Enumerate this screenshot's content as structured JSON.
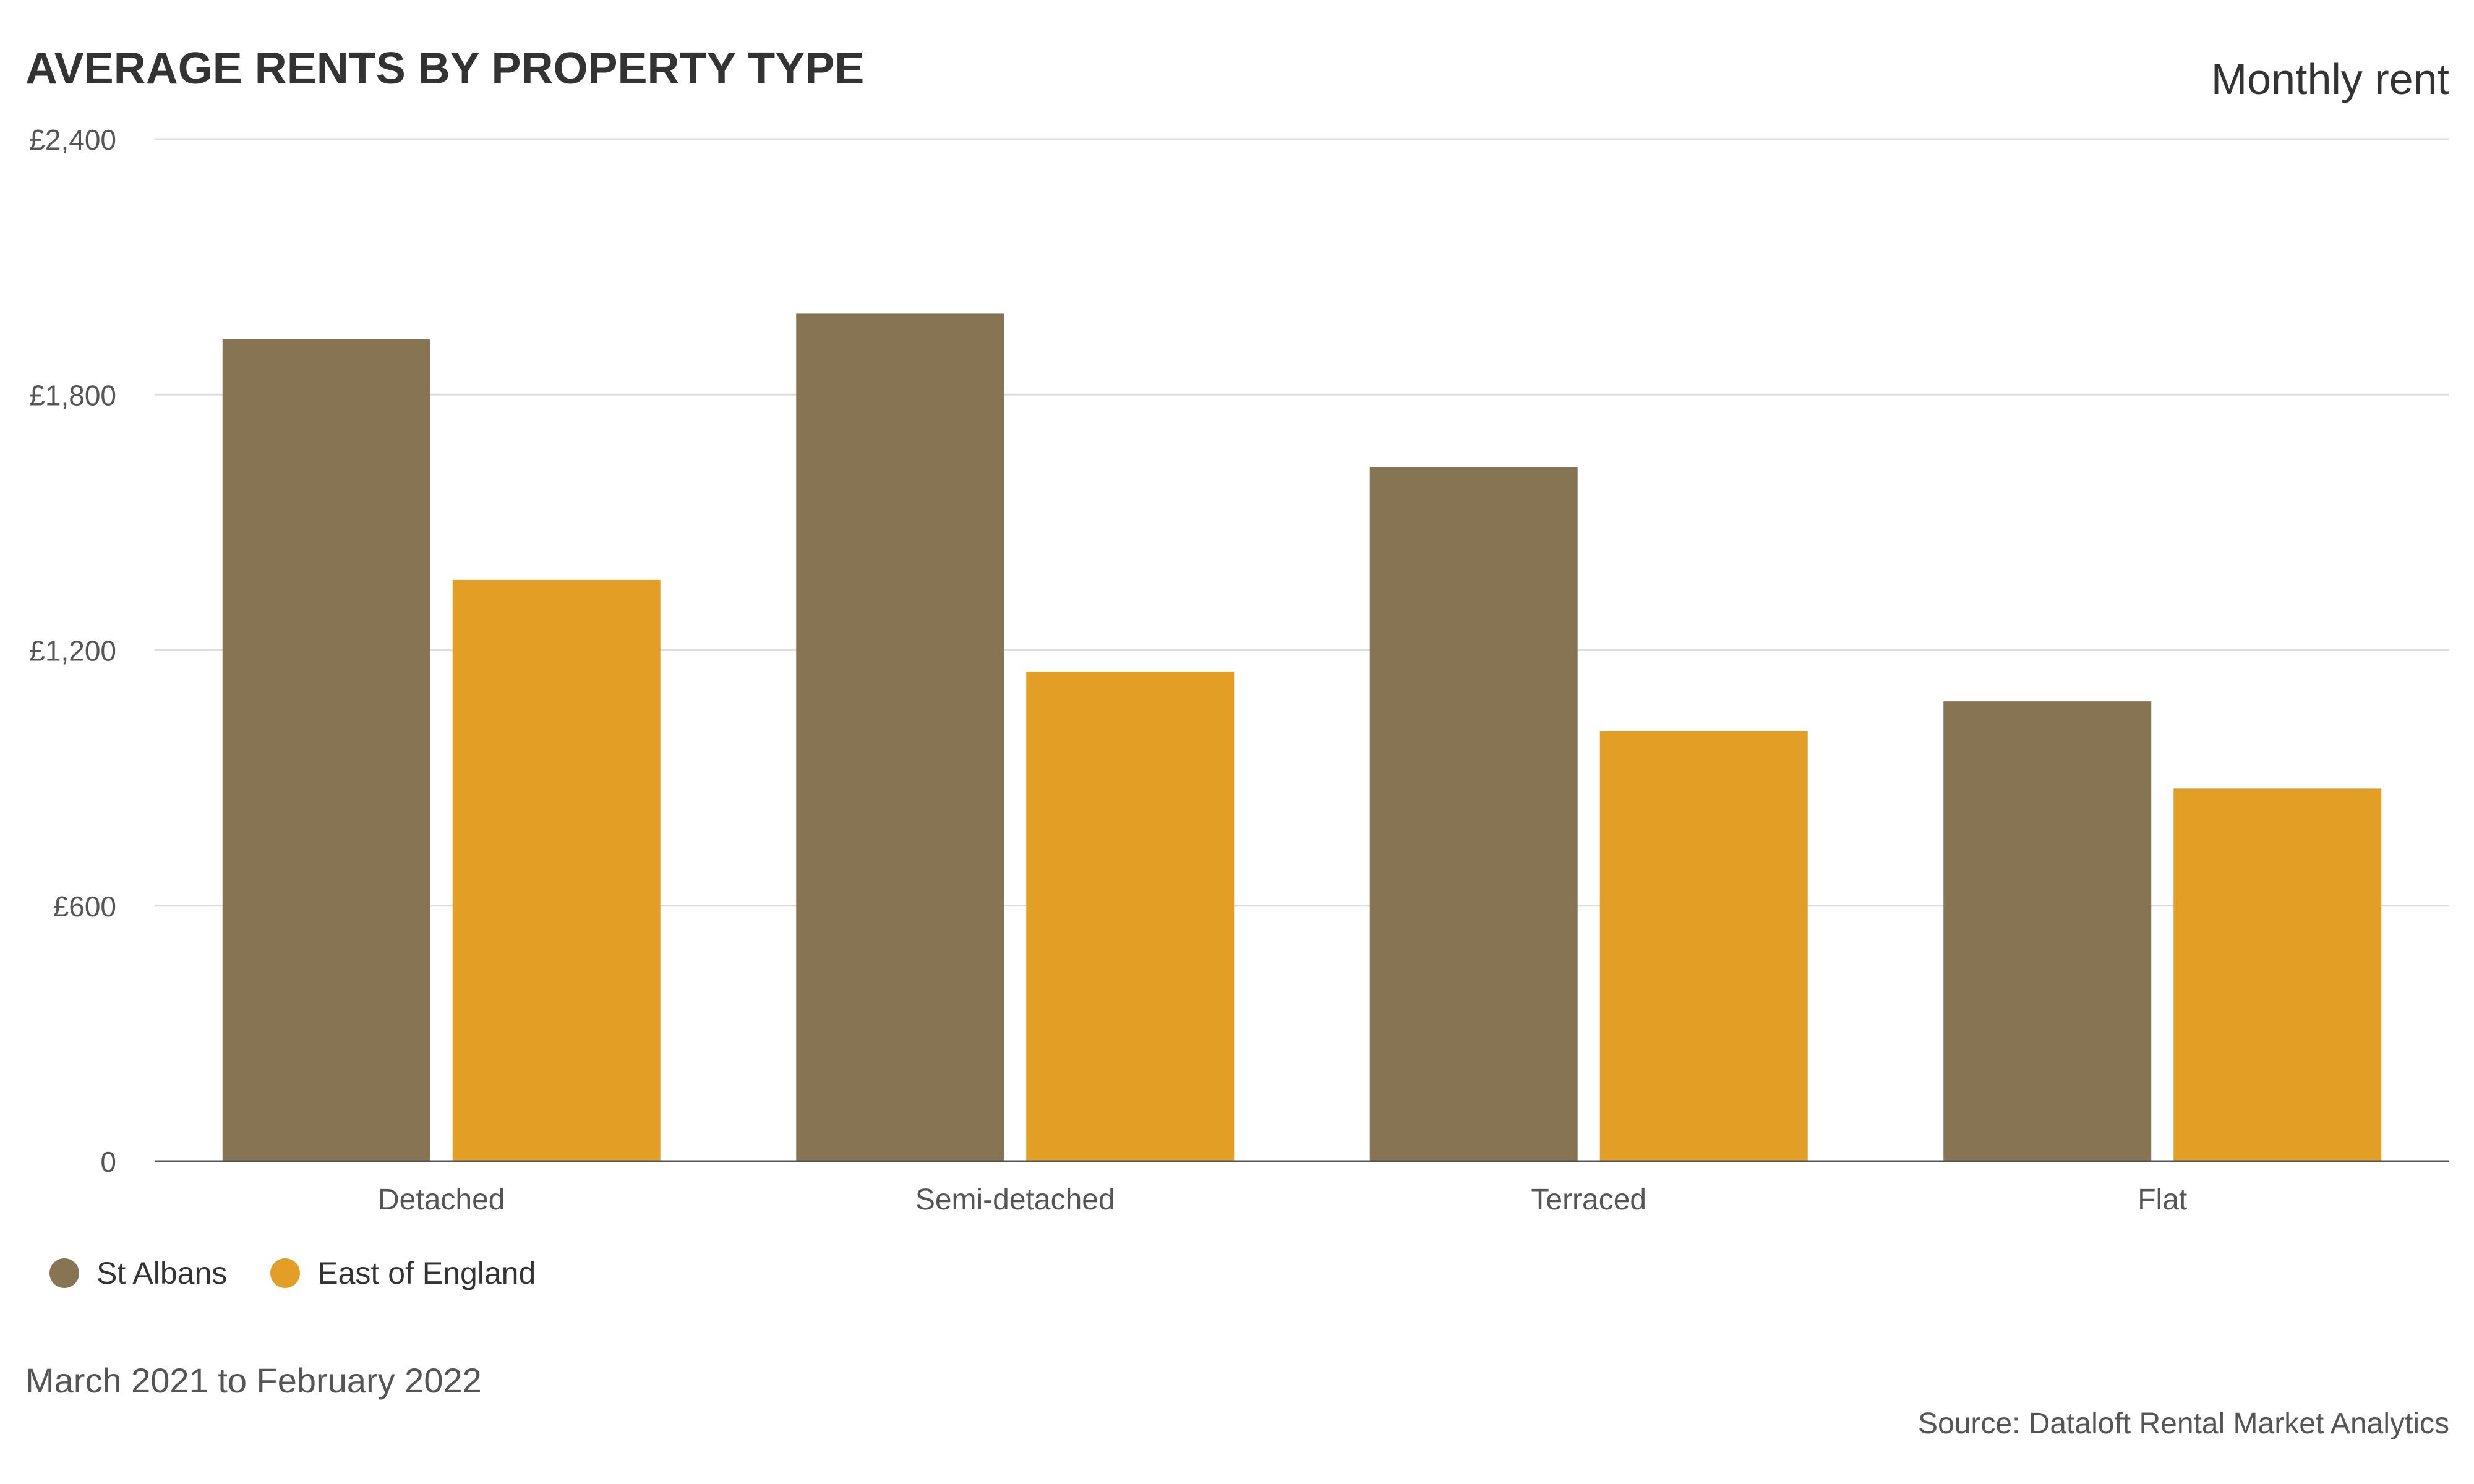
{
  "header": {
    "title": "AVERAGE RENTS BY PROPERTY TYPE",
    "right_label": "Monthly rent"
  },
  "footer": {
    "date_range": "March 2021 to February 2022",
    "source": "Source: Dataloft Rental Market Analytics"
  },
  "colors": {
    "st_albans": "#877452",
    "east_of_england": "#E29E25",
    "grid": "#dddddd",
    "axis": "#555555"
  },
  "chart_data": {
    "type": "bar",
    "title": "AVERAGE RENTS BY PROPERTY TYPE",
    "categories": [
      "Detached",
      "Semi-detached",
      "Terraced",
      "Flat"
    ],
    "series": [
      {
        "name": "St Albans",
        "values": [
          1930,
          1990,
          1630,
          1080
        ]
      },
      {
        "name": "East of England",
        "values": [
          1365,
          1150,
          1010,
          875
        ]
      }
    ],
    "ylim": [
      0,
      2400
    ],
    "yticks": [
      0,
      600,
      1200,
      1800,
      2400
    ],
    "ytick_labels": [
      "0",
      "£600",
      "£1,200",
      "£1,800",
      "£2,400"
    ],
    "grid": true,
    "legend": "bottom-left"
  }
}
